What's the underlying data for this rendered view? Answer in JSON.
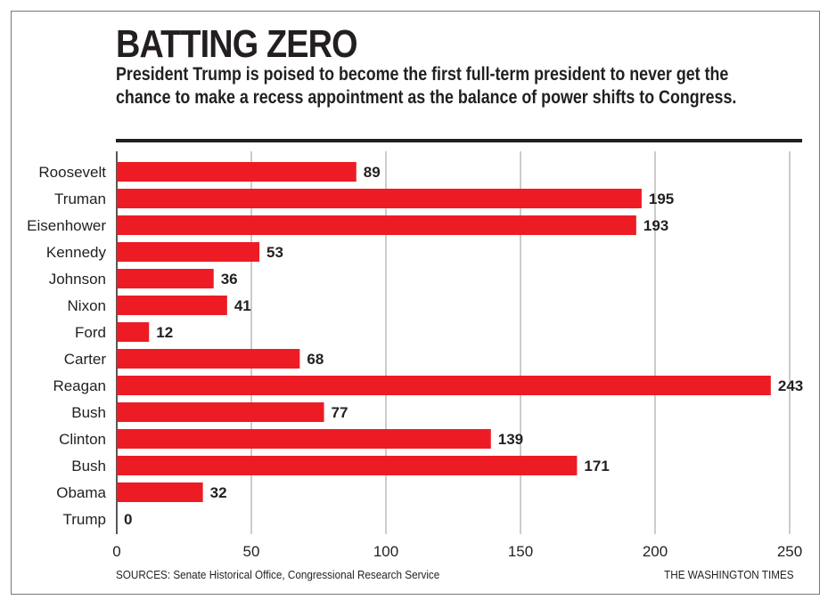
{
  "chart_data": {
    "type": "bar",
    "orientation": "horizontal",
    "title": "BATTING ZERO",
    "subtitle": "President Trump is poised to become the first full-term president to never get the chance to make a recess appointment as the balance of power shifts to Congress.",
    "categories": [
      "Roosevelt",
      "Truman",
      "Eisenhower",
      "Kennedy",
      "Johnson",
      "Nixon",
      "Ford",
      "Carter",
      "Reagan",
      "Bush",
      "Clinton",
      "Bush",
      "Obama",
      "Trump"
    ],
    "values": [
      89,
      195,
      193,
      53,
      36,
      41,
      12,
      68,
      243,
      77,
      139,
      171,
      32,
      0
    ],
    "x_ticks": [
      0,
      50,
      100,
      150,
      200,
      250
    ],
    "xlim": [
      0,
      250
    ],
    "xlabel": "",
    "ylabel": "",
    "grid": "vertical",
    "bar_color": "#ed1c24",
    "source": "SOURCES: Senate Historical Office, Congressional Research Service",
    "credit": "THE WASHINGTON TIMES"
  }
}
